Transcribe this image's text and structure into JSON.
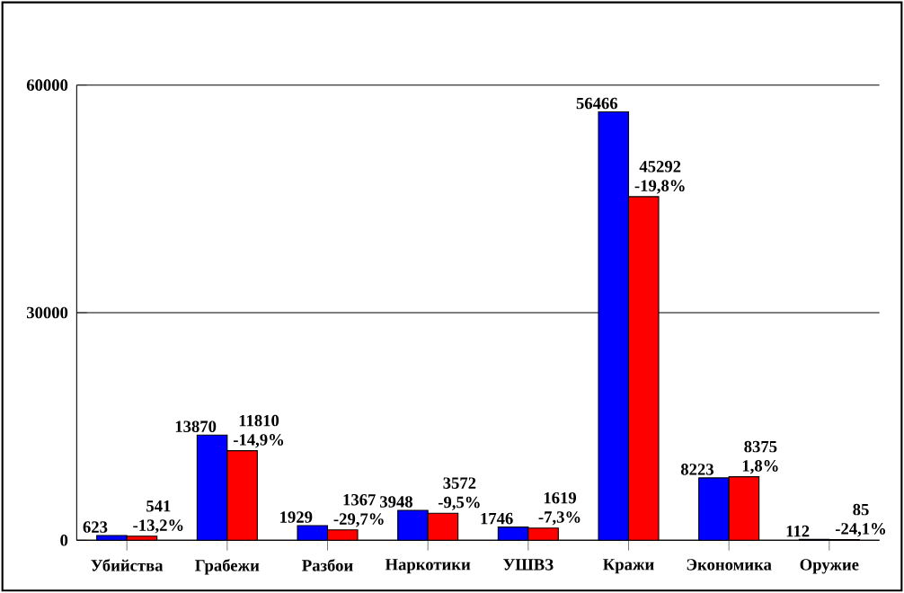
{
  "chart_data": {
    "type": "bar",
    "categories": [
      "Убийства",
      "Грабежи",
      "Разбои",
      "Наркотики",
      "УШВЗ",
      "Кражи",
      "Экономика",
      "Оружие"
    ],
    "series": [
      {
        "color": "#0000ff",
        "values": [
          623,
          13870,
          1929,
          3948,
          1746,
          56466,
          8223,
          112
        ],
        "value_labels": [
          "623",
          "13870",
          "1929",
          "3948",
          "1746",
          "56466",
          "8223",
          "112"
        ]
      },
      {
        "color": "#ff0000",
        "values": [
          541,
          11810,
          1367,
          3572,
          1619,
          45292,
          8375,
          85
        ],
        "value_labels": [
          "541 -13,2%",
          "11810 -14,9%",
          "1367 -29,7%",
          "3572 -9,5%",
          "1619 -7,3%",
          "45292 -19,8%",
          "8375 1,8%",
          "85 -24,1%"
        ]
      }
    ],
    "ylim": [
      0,
      60000
    ],
    "yticks": [
      0,
      30000,
      60000
    ],
    "grid": "y"
  }
}
